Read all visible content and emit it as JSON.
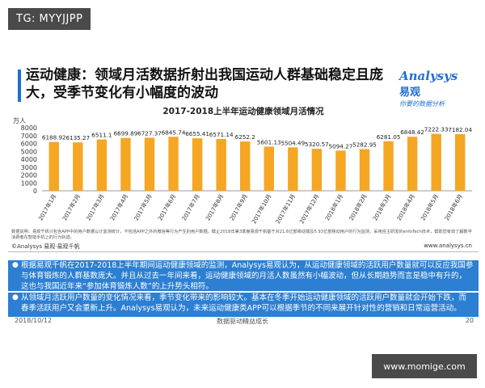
{
  "watermark_top": "TG: MYYJJPP",
  "watermark_bottom": "www.momige.com",
  "slide": {
    "title": "运动健康：领域月活数据折射出我国运动人群基础稳定且庞大，受季节变化有小幅度的波动",
    "logo_brand": "Analysys",
    "logo_brand_cn": "易观",
    "logo_slogan": "你要的数据分析",
    "chart_title": "2017-2018上半年运动健康领域月活情况",
    "source_note": "数据说明：易观千帆只包含APP中的用户数据以计监测统计，不包括APP之外的微信等行为产生的用户数据。截止2018年第3季度易观千帆基于对21.6亿部移动端及5.93亿部移动用户的行为监测，采用自主研发的enfoTech技术，帮助您有效了解数字消费者在智能手机上的行为轨迹。",
    "source_left": "©Analysys 易观·易观千帆",
    "source_right": "www.analysys.cn",
    "color_bar": "#f5a623",
    "color_accent": "#1f6fd1"
  },
  "panels": [
    {
      "text": "根据易观千帆在2017-2018上半年期间运动健康领域的监测，Analysys易观认为，从运动健康领域的活跃用户数量就可以反应我国参与体育锻炼的人群基数庞大。并且从过去一年间来看，运动健康领域的月活人数虽然有小幅波动，但从长期趋势而言是稳中有升的，这也与我国近年来“参加体育锻炼人数”的上升势头相符。"
    },
    {
      "text": "从领域月活跃用户数量的变化情况来看，季节变化带来的影响较大。基本在冬季开始运动健康领域的活跃用户数量就会开始下跌，而春季活跃用户又会重新上升。Analysys易观认为，未来运动健康类APP可以根据季节的不同来展开针对性的营销和日常运营活动。"
    }
  ],
  "footer": {
    "date": "2018/10/12",
    "center": "数据驱动精益成长",
    "page": "20"
  },
  "chart_data": {
    "type": "bar",
    "title": "2017-2018上半年运动健康领域月活情况",
    "ylabel": "万人",
    "ylim": [
      0,
      8000
    ],
    "yticks": [
      0,
      1000,
      2000,
      3000,
      4000,
      5000,
      6000,
      7000,
      8000
    ],
    "grid": false,
    "categories": [
      "2017年1月",
      "2017年2月",
      "2017年3月",
      "2017年4月",
      "2017年5月",
      "2017年6月",
      "2017年7月",
      "2017年8月",
      "2017年9月",
      "2017年10月",
      "2017年11月",
      "2017年12月",
      "2018年1月",
      "2018年2月",
      "2018年3月",
      "2018年4月",
      "2018年5月",
      "2018年6月"
    ],
    "values": [
      6188.92,
      6135.27,
      6511.1,
      6699.89,
      6727.37,
      6845.74,
      6655.41,
      6571.14,
      6252.2,
      5601.13,
      5504.49,
      5320.57,
      5094.27,
      5282.95,
      6281.05,
      6848.42,
      7222.33,
      7182.04
    ],
    "labels": [
      "6188.92",
      "6135.27",
      "6511.1",
      "6699.89",
      "6727.37",
      "6845.74",
      "6655.41",
      "6571.14",
      "6252.2",
      "5601.13",
      "5504.49",
      "5320.57",
      "5094.27",
      "5282.95",
      "6281.05",
      "6848.42",
      "7222.33",
      "7182.04"
    ]
  }
}
